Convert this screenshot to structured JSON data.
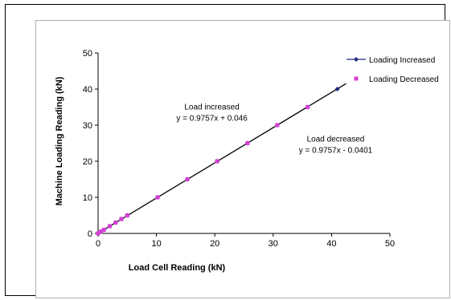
{
  "chart_data": {
    "type": "scatter",
    "xlabel": "Load Cell Reading (kN)",
    "ylabel": "Machine Loading Reading (kN)",
    "xlim": [
      0,
      50
    ],
    "ylim": [
      0,
      50
    ],
    "x_ticks": [
      "0",
      "10",
      "20",
      "30",
      "40",
      "50"
    ],
    "y_ticks": [
      "0",
      "10",
      "20",
      "30",
      "40",
      "50"
    ],
    "grid": false,
    "legend_position": "top-right",
    "series": [
      {
        "name": "Loading Increased",
        "marker": "diamond",
        "color": "#1f2a7a",
        "x": [
          0,
          0.5,
          1,
          2,
          3,
          4,
          5,
          10.2,
          15.3,
          20.4,
          25.6,
          30.7,
          35.9,
          41.0
        ],
        "y": [
          0,
          0.5,
          1.0,
          2.0,
          3.0,
          4.0,
          5.0,
          10.0,
          15.0,
          20.0,
          25.0,
          30.0,
          35.0,
          40.0
        ]
      },
      {
        "name": "Loading Decreased",
        "marker": "square",
        "color": "#d63fd6",
        "x": [
          0,
          0.5,
          1,
          2,
          3,
          4,
          5,
          10.2,
          15.3,
          20.4,
          25.6,
          30.7,
          35.9
        ],
        "y": [
          0,
          0.5,
          1.0,
          2.0,
          3.0,
          4.0,
          5.0,
          10.0,
          15.0,
          20.0,
          25.0,
          30.0,
          35.0
        ]
      }
    ],
    "trendline": {
      "x": [
        0,
        42.5
      ],
      "y": [
        0.046,
        41.51
      ],
      "color": "#000000"
    },
    "annotations": [
      {
        "lines": [
          "Load increased",
          "y = 0.9757x + 0.046"
        ],
        "x": 19.5,
        "y": 34.3
      },
      {
        "lines": [
          "Load decreased",
          "y = 0.9757x - 0.0401"
        ],
        "x": 40.7,
        "y": 25.5
      }
    ]
  }
}
